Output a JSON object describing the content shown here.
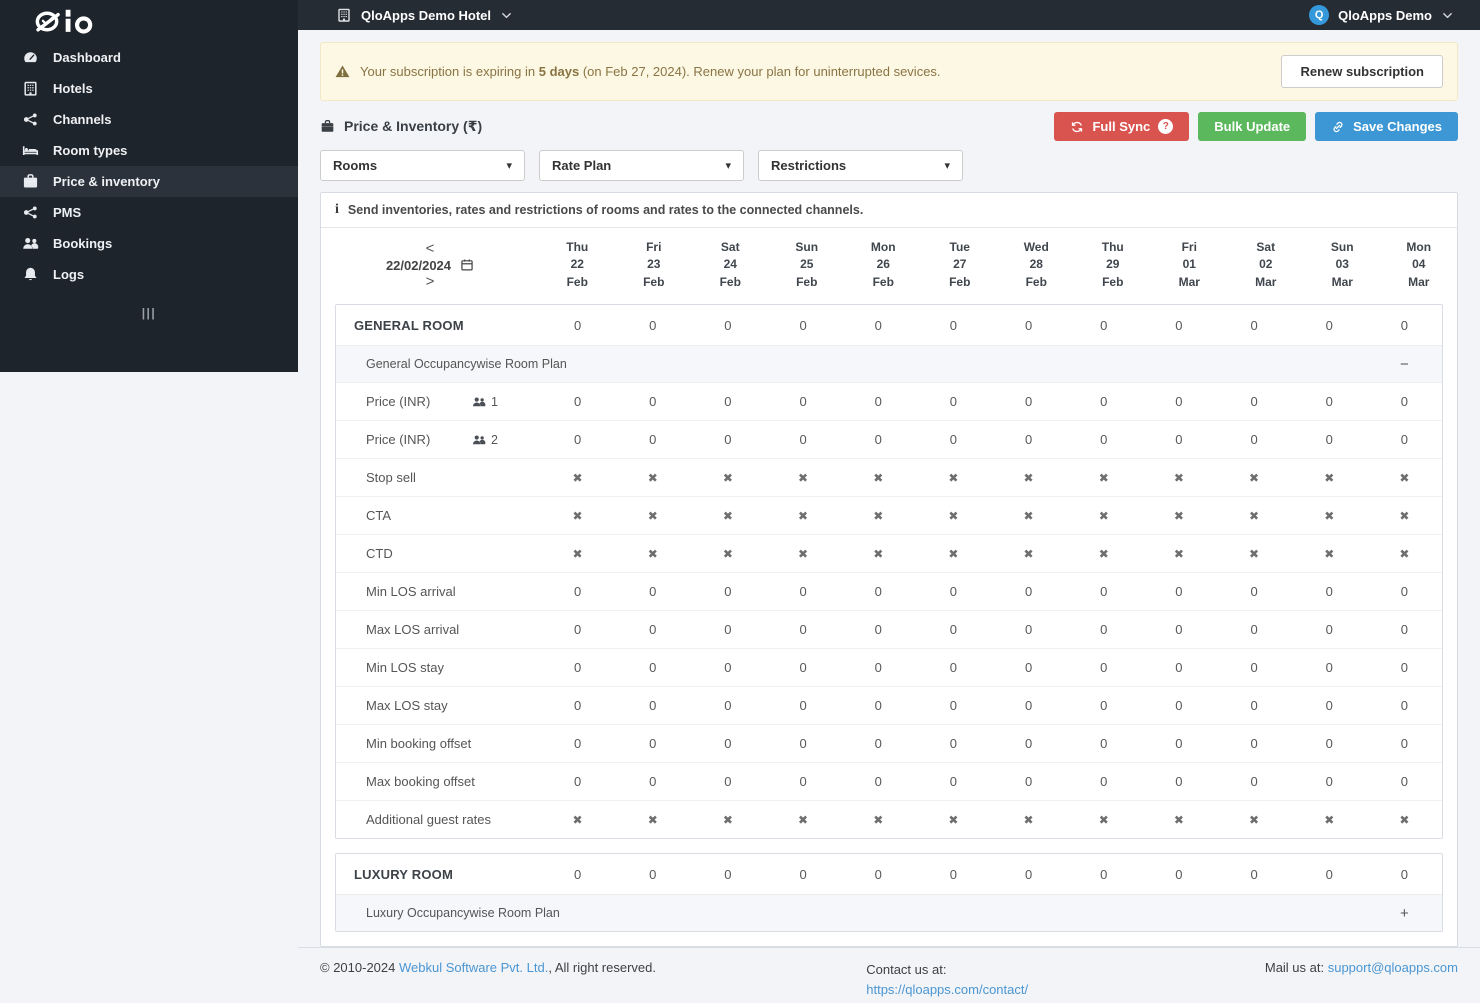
{
  "app": {
    "logo_text": "Qlo"
  },
  "sidebar": {
    "items": [
      {
        "label": "Dashboard",
        "icon": "speedometer-icon",
        "active": false
      },
      {
        "label": "Hotels",
        "icon": "building-icon",
        "active": false
      },
      {
        "label": "Channels",
        "icon": "share-nodes-icon",
        "active": false
      },
      {
        "label": "Room types",
        "icon": "bed-icon",
        "active": false
      },
      {
        "label": "Price & inventory",
        "icon": "briefcase-icon",
        "active": true
      },
      {
        "label": "PMS",
        "icon": "share-nodes-icon",
        "active": false
      },
      {
        "label": "Bookings",
        "icon": "users-icon",
        "active": false
      },
      {
        "label": "Logs",
        "icon": "bell-icon",
        "active": false
      }
    ],
    "collapse_handle": "|||"
  },
  "topbar": {
    "hotel_selector": "QloApps Demo Hotel",
    "user_name": "QloApps Demo",
    "user_initial": "Q"
  },
  "banner": {
    "text_prefix": "Your subscription is expiring in ",
    "text_bold": "5 days",
    "text_suffix": " (on Feb 27, 2024). Renew your plan for uninterrupted sevices.",
    "renew_label": "Renew subscription"
  },
  "toolbar": {
    "title": "Price & Inventory (₹)",
    "full_sync_label": "Full Sync",
    "bulk_update_label": "Bulk Update",
    "save_changes_label": "Save Changes"
  },
  "filters": [
    {
      "label": "Rooms"
    },
    {
      "label": "Rate Plan"
    },
    {
      "label": "Restrictions"
    }
  ],
  "info_bar": {
    "text": "Send inventories, rates and restrictions of rooms and rates to the connected channels."
  },
  "date_nav": {
    "date": "22/02/2024",
    "prev": "<",
    "next": ">"
  },
  "icons": {
    "x_mark": "✖",
    "caret_down": "▾",
    "info": "i",
    "question": "?"
  },
  "table": {
    "columns": [
      {
        "day": "Thu",
        "date": "22",
        "month": "Feb"
      },
      {
        "day": "Fri",
        "date": "23",
        "month": "Feb"
      },
      {
        "day": "Sat",
        "date": "24",
        "month": "Feb"
      },
      {
        "day": "Sun",
        "date": "25",
        "month": "Feb"
      },
      {
        "day": "Mon",
        "date": "26",
        "month": "Feb"
      },
      {
        "day": "Tue",
        "date": "27",
        "month": "Feb"
      },
      {
        "day": "Wed",
        "date": "28",
        "month": "Feb"
      },
      {
        "day": "Thu",
        "date": "29",
        "month": "Feb"
      },
      {
        "day": "Fri",
        "date": "01",
        "month": "Mar"
      },
      {
        "day": "Sat",
        "date": "02",
        "month": "Mar"
      },
      {
        "day": "Sun",
        "date": "03",
        "month": "Mar"
      },
      {
        "day": "Mon",
        "date": "04",
        "month": "Mar"
      }
    ],
    "sections": [
      {
        "name": "GENERAL ROOM",
        "values": [
          "0",
          "0",
          "0",
          "0",
          "0",
          "0",
          "0",
          "0",
          "0",
          "0",
          "0",
          "0"
        ],
        "plan": {
          "label": "General Occupancywise Room Plan",
          "toggle": "−",
          "expanded": true
        },
        "rows": [
          {
            "label": "Price (INR)",
            "occupancy": "1",
            "values": [
              "0",
              "0",
              "0",
              "0",
              "0",
              "0",
              "0",
              "0",
              "0",
              "0",
              "0",
              "0"
            ]
          },
          {
            "label": "Price (INR)",
            "occupancy": "2",
            "values": [
              "0",
              "0",
              "0",
              "0",
              "0",
              "0",
              "0",
              "0",
              "0",
              "0",
              "0",
              "0"
            ]
          },
          {
            "label": "Stop sell",
            "values": [
              "x",
              "x",
              "x",
              "x",
              "x",
              "x",
              "x",
              "x",
              "x",
              "x",
              "x",
              "x"
            ]
          },
          {
            "label": "CTA",
            "values": [
              "x",
              "x",
              "x",
              "x",
              "x",
              "x",
              "x",
              "x",
              "x",
              "x",
              "x",
              "x"
            ]
          },
          {
            "label": "CTD",
            "values": [
              "x",
              "x",
              "x",
              "x",
              "x",
              "x",
              "x",
              "x",
              "x",
              "x",
              "x",
              "x"
            ]
          },
          {
            "label": "Min LOS arrival",
            "values": [
              "0",
              "0",
              "0",
              "0",
              "0",
              "0",
              "0",
              "0",
              "0",
              "0",
              "0",
              "0"
            ]
          },
          {
            "label": "Max LOS arrival",
            "values": [
              "0",
              "0",
              "0",
              "0",
              "0",
              "0",
              "0",
              "0",
              "0",
              "0",
              "0",
              "0"
            ]
          },
          {
            "label": "Min LOS stay",
            "values": [
              "0",
              "0",
              "0",
              "0",
              "0",
              "0",
              "0",
              "0",
              "0",
              "0",
              "0",
              "0"
            ]
          },
          {
            "label": "Max LOS stay",
            "values": [
              "0",
              "0",
              "0",
              "0",
              "0",
              "0",
              "0",
              "0",
              "0",
              "0",
              "0",
              "0"
            ]
          },
          {
            "label": "Min booking offset",
            "values": [
              "0",
              "0",
              "0",
              "0",
              "0",
              "0",
              "0",
              "0",
              "0",
              "0",
              "0",
              "0"
            ]
          },
          {
            "label": "Max booking offset",
            "values": [
              "0",
              "0",
              "0",
              "0",
              "0",
              "0",
              "0",
              "0",
              "0",
              "0",
              "0",
              "0"
            ]
          },
          {
            "label": "Additional guest rates",
            "values": [
              "x",
              "x",
              "x",
              "x",
              "x",
              "x",
              "x",
              "x",
              "x",
              "x",
              "x",
              "x"
            ]
          }
        ]
      },
      {
        "name": "LUXURY ROOM",
        "values": [
          "0",
          "0",
          "0",
          "0",
          "0",
          "0",
          "0",
          "0",
          "0",
          "0",
          "0",
          "0"
        ],
        "plan": {
          "label": "Luxury Occupancywise Room Plan",
          "toggle": "+",
          "expanded": false
        },
        "rows": []
      }
    ]
  },
  "footer": {
    "copyright_prefix": "© 2010-2024 ",
    "company_link": "Webkul Software Pvt. Ltd.",
    "copyright_suffix": ", All right reserved.",
    "contact_label": "Contact us at:",
    "contact_link": "https://qloapps.com/contact/",
    "mail_label": "Mail us at: ",
    "mail_link": "support@qloapps.com"
  },
  "colors": {
    "sidebar_bg": "#1e242c",
    "sidebar_active_bg": "#2c323c",
    "topbar_bg": "#262c34",
    "page_bg": "#f2f4f8",
    "banner_bg": "#fcf8e3",
    "banner_text": "#8a7444",
    "danger": "#d9534f",
    "success": "#5cb85c",
    "primary": "#3d97d4",
    "link": "#4b96d2",
    "avatar": "#3498db"
  }
}
